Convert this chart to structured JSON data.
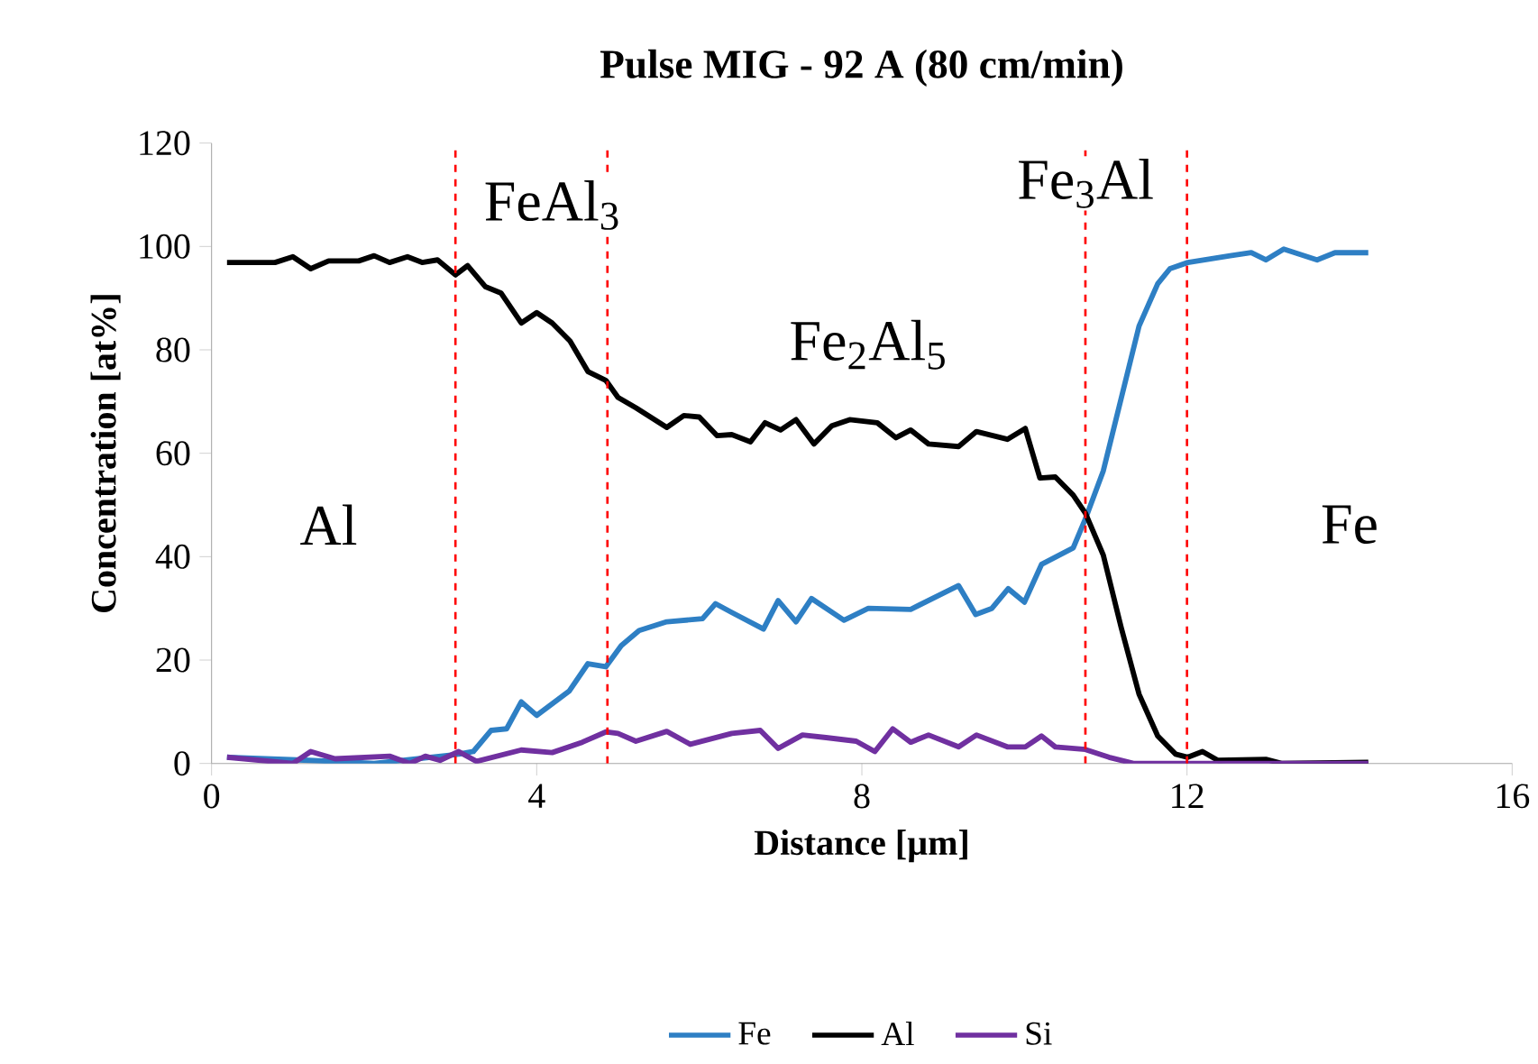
{
  "chart_data": {
    "type": "line",
    "title": "Pulse MIG - 92 A (80 cm/min)",
    "xlabel": "Distance [µm]",
    "ylabel": "Concentration [at%]",
    "xlim": [
      0,
      16
    ],
    "xticks": [
      0,
      4,
      8,
      12,
      16
    ],
    "ylim": [
      0,
      120
    ],
    "yticks": [
      0,
      20,
      40,
      60,
      80,
      100,
      120
    ],
    "grid": false,
    "legend": "bottom",
    "marker": "none",
    "line_style": "solid",
    "series": [
      {
        "name": "Fe",
        "color": "#2e7fc4",
        "x": [
          0.19,
          1.2,
          2,
          3,
          3.22,
          3.44,
          3.63,
          3.81,
          4,
          4.4,
          4.63,
          4.85,
          5.04,
          5.26,
          5.6,
          6.04,
          6.2,
          6.4,
          6.79,
          6.97,
          7.19,
          7.38,
          7.78,
          8.08,
          8.6,
          9.19,
          9.4,
          9.6,
          9.8,
          10,
          10.21,
          10.6,
          10.75,
          10.97,
          11.19,
          11.41,
          11.64,
          11.79,
          12.01,
          12.53,
          12.79,
          12.97,
          13.19,
          13.6,
          13.82,
          14.23
        ],
        "values": [
          1.2,
          0.6,
          0,
          1.7,
          2.3,
          6.4,
          6.7,
          11.9,
          9.3,
          14,
          19.3,
          18.7,
          22.8,
          25.7,
          27.4,
          28,
          30.9,
          29.2,
          26,
          31.5,
          27.4,
          31.9,
          27.7,
          30,
          29.8,
          34.4,
          28.8,
          30,
          33.8,
          31.2,
          38.5,
          41.7,
          47.3,
          56.6,
          70.6,
          84.6,
          92.8,
          95.7,
          96.9,
          98.2,
          98.8,
          97.4,
          99.5,
          97.4,
          98.8,
          98.8
        ]
      },
      {
        "name": "Al",
        "color": "#000000",
        "x": [
          0.19,
          0.78,
          1,
          1.22,
          1.44,
          1.81,
          2,
          2.19,
          2.41,
          2.59,
          2.78,
          3,
          3.15,
          3.37,
          3.56,
          3.81,
          4,
          4.19,
          4.41,
          4.63,
          4.85,
          5,
          5.22,
          5.6,
          5.81,
          6,
          6.22,
          6.4,
          6.63,
          6.81,
          7,
          7.19,
          7.41,
          7.63,
          7.85,
          8.19,
          8.42,
          8.6,
          8.82,
          9.19,
          9.41,
          9.79,
          10.01,
          10.19,
          10.38,
          10.6,
          10.75,
          10.97,
          11.19,
          11.41,
          11.64,
          11.86,
          12.01,
          12.19,
          12.38,
          12.97,
          13.16,
          14.23
        ],
        "values": [
          96.9,
          96.9,
          98,
          95.7,
          97.2,
          97.2,
          98.2,
          96.9,
          98,
          96.9,
          97.4,
          94.5,
          96.3,
          92.2,
          91,
          85.2,
          87.2,
          85.2,
          81.7,
          75.8,
          74.1,
          70.8,
          68.8,
          65,
          67.3,
          67,
          63.4,
          63.6,
          62.2,
          65.9,
          64.5,
          66.5,
          61.8,
          65.3,
          66.5,
          65.9,
          63,
          64.5,
          61.8,
          61.3,
          64.2,
          62.7,
          64.8,
          55.2,
          55.4,
          51.9,
          48.4,
          40.3,
          26.3,
          13.4,
          5.3,
          1.8,
          1.2,
          2.3,
          0.6,
          0.8,
          0,
          0.2
        ]
      },
      {
        "name": "Si",
        "color": "#7030a0",
        "x": [
          0.19,
          1,
          1.22,
          1.52,
          2.19,
          2.44,
          2.63,
          2.81,
          3.04,
          3.26,
          3.81,
          4.19,
          4.56,
          4.85,
          5,
          5.22,
          5.6,
          5.89,
          6.4,
          6.75,
          6.97,
          7.27,
          7.56,
          7.93,
          8.16,
          8.38,
          8.6,
          8.82,
          9.19,
          9.41,
          9.79,
          10.01,
          10.21,
          10.38,
          10.75,
          11.04,
          11.34,
          14.23
        ],
        "values": [
          1.2,
          0,
          2.3,
          0.9,
          1.4,
          0,
          1.4,
          0.6,
          2.3,
          0.4,
          2.6,
          2.1,
          4.1,
          6.1,
          5.8,
          4.3,
          6.2,
          3.7,
          5.8,
          6.4,
          2.9,
          5.5,
          5,
          4.3,
          2.3,
          6.7,
          4.1,
          5.5,
          3.2,
          5.5,
          3.2,
          3.2,
          5.3,
          3.2,
          2.7,
          1.2,
          0,
          0
        ]
      }
    ],
    "ref_lines": [
      {
        "axis": "x",
        "value": 3.0,
        "color": "#ff0000",
        "line_style": "dashed"
      },
      {
        "axis": "x",
        "value": 4.87,
        "color": "#ff0000",
        "line_style": "dashed"
      },
      {
        "axis": "x",
        "value": 10.75,
        "color": "#ff0000",
        "line_style": "dashed"
      },
      {
        "axis": "x",
        "value": 12.0,
        "color": "#ff0000",
        "line_style": "dashed"
      }
    ],
    "annotations": [
      "FeAl$_{3}$",
      "Fe$_{2}$Al$_{5}$",
      "Fe$_{3}$Al",
      "Al",
      "Fe"
    ]
  }
}
